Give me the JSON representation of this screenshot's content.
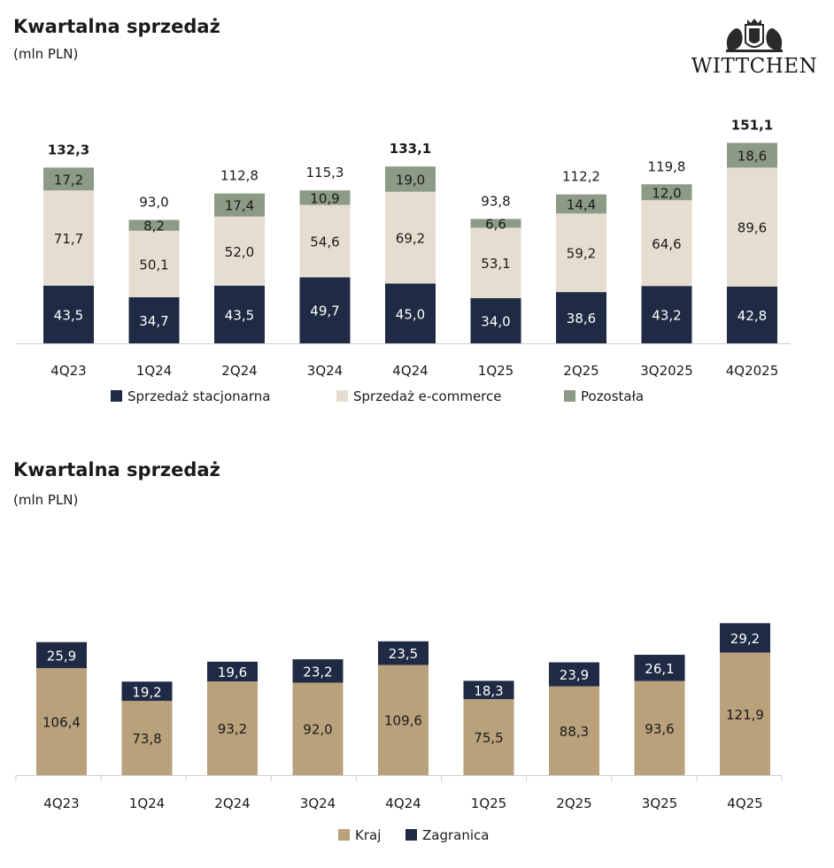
{
  "logo": {
    "text": "WITTCHEN",
    "icon": "crest-icon"
  },
  "colors": {
    "stacjonarna": "#1f2a44",
    "ecommerce": "#e6ddd1",
    "pozostala": "#8c9a86",
    "kraj": "#b9a17b",
    "zagranica": "#1f2a44"
  },
  "chart_data": [
    {
      "type": "bar",
      "stacked": true,
      "title": "Kwartalna sprzedaż",
      "subtitle": "(mln PLN)",
      "categories": [
        "4Q23",
        "1Q24",
        "2Q24",
        "3Q24",
        "4Q24",
        "1Q25",
        "2Q25",
        "3Q2025",
        "4Q2025"
      ],
      "series": [
        {
          "name": "Sprzedaż stacjonarna",
          "values": [
            "43,5",
            "34,7",
            "43,5",
            "49,7",
            "45,0",
            "34,0",
            "38,6",
            "43,2",
            "42,8"
          ]
        },
        {
          "name": "Sprzedaż e-commerce",
          "values": [
            "71,7",
            "50,1",
            "52,0",
            "54,6",
            "69,2",
            "53,1",
            "59,2",
            "64,6",
            "89,6"
          ]
        },
        {
          "name": "Pozostała",
          "values": [
            "17,2",
            "8,2",
            "17,4",
            "10,9",
            "19,0",
            "6,6",
            "14,4",
            "12,0",
            "18,6"
          ]
        }
      ],
      "totals": [
        "132,3",
        "93,0",
        "112,8",
        "115,3",
        "133,1",
        "93,8",
        "112,2",
        "119,8",
        "151,1"
      ],
      "bold_totals": [
        "4Q23",
        "4Q24",
        "4Q2025"
      ],
      "legend_position": "bottom",
      "grid": false
    },
    {
      "type": "bar",
      "stacked": true,
      "title": "Kwartalna sprzedaż",
      "subtitle": "(mln PLN)",
      "categories": [
        "4Q23",
        "1Q24",
        "2Q24",
        "3Q24",
        "4Q24",
        "1Q25",
        "2Q25",
        "3Q25",
        "4Q25"
      ],
      "series": [
        {
          "name": "Kraj",
          "values": [
            "106,4",
            "73,8",
            "93,2",
            "92,0",
            "109,6",
            "75,5",
            "88,3",
            "93,6",
            "121,9"
          ]
        },
        {
          "name": "Zagranica",
          "values": [
            "25,9",
            "19,2",
            "19,6",
            "23,2",
            "23,5",
            "18,3",
            "23,9",
            "26,1",
            "29,2"
          ]
        }
      ],
      "legend_position": "bottom",
      "grid": false
    }
  ]
}
